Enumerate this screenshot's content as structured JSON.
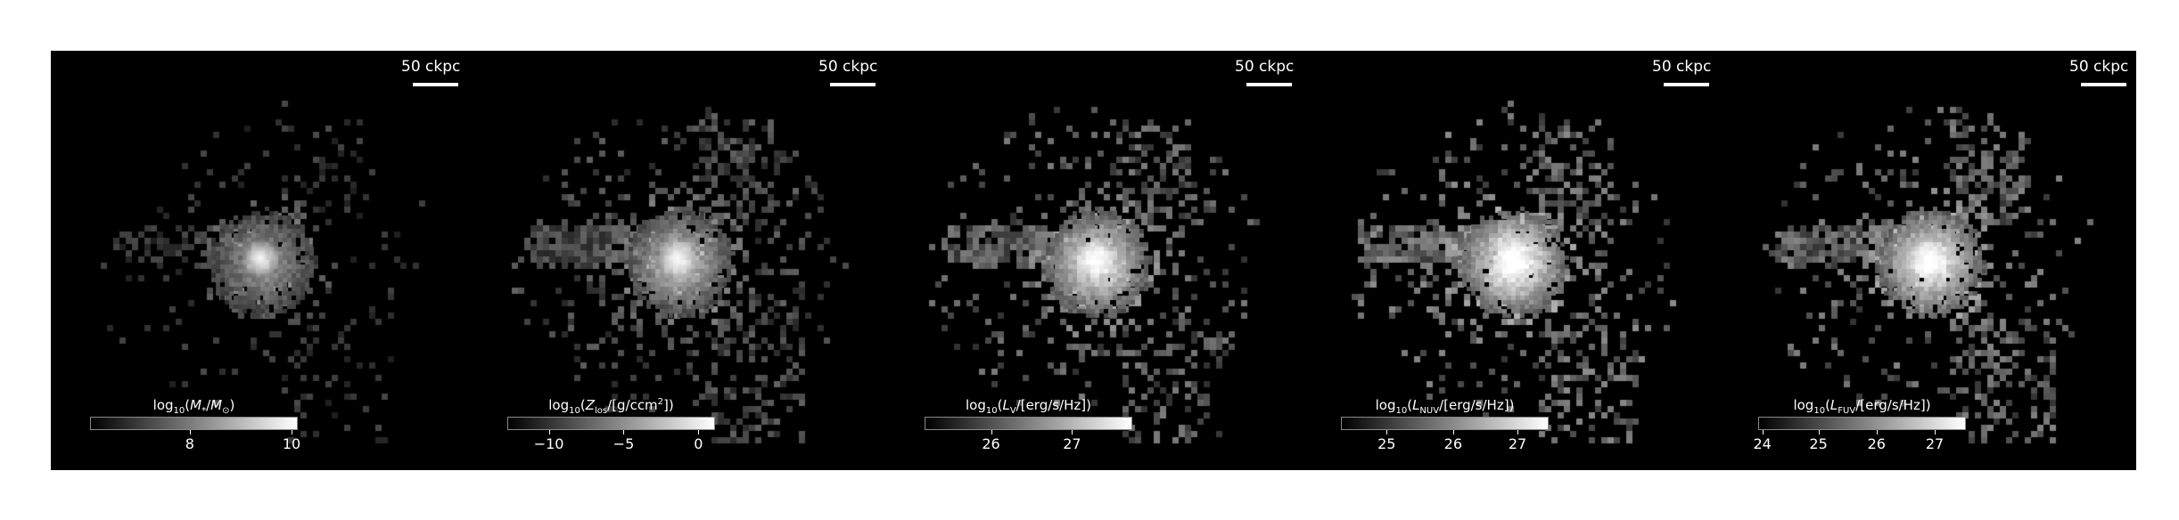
{
  "figure": {
    "scale_bar_label": "50 ckpc",
    "panels": [
      {
        "id": "stellar-mass",
        "cb_prefix": "log",
        "cb_sub": "10",
        "cb_body_html": "(<i>M</i><sub>*</sub>/<i>M</i><sub>⊙</sub>)",
        "ticks": [
          "8",
          "10"
        ],
        "tick_positions": [
          0.48,
          0.97
        ],
        "density": 0.55,
        "brightness": 0.45
      },
      {
        "id": "metallicity",
        "cb_prefix": "log",
        "cb_sub": "10",
        "cb_body_html": "(<i>Z</i><sub>los</sub>/[g/ccm<sup>2</sup>])",
        "ticks": [
          "−10",
          "−5",
          "0"
        ],
        "tick_positions": [
          0.2,
          0.56,
          0.92
        ],
        "density": 1.0,
        "brightness": 0.6
      },
      {
        "id": "v-band",
        "cb_prefix": "log",
        "cb_sub": "10",
        "cb_body_html": "(<i>L</i><sub>V</sub>/[erg/s/Hz])",
        "ticks": [
          "26",
          "27"
        ],
        "tick_positions": [
          0.32,
          0.71
        ],
        "density": 0.85,
        "brightness": 0.75
      },
      {
        "id": "nuv",
        "cb_prefix": "log",
        "cb_sub": "10",
        "cb_body_html": "(<i>L</i><sub>NUV</sub>/[erg/s/Hz])",
        "ticks": [
          "25",
          "26",
          "27"
        ],
        "tick_positions": [
          0.22,
          0.54,
          0.85
        ],
        "density": 0.9,
        "brightness": 0.85
      },
      {
        "id": "fuv",
        "cb_prefix": "log",
        "cb_sub": "10",
        "cb_body_html": "(<i>L</i><sub>FUV</sub>/[erg/s/Hz])",
        "ticks": [
          "24",
          "25",
          "26",
          "27"
        ],
        "tick_positions": [
          0.02,
          0.29,
          0.57,
          0.85
        ],
        "density": 0.9,
        "brightness": 0.8
      }
    ]
  }
}
